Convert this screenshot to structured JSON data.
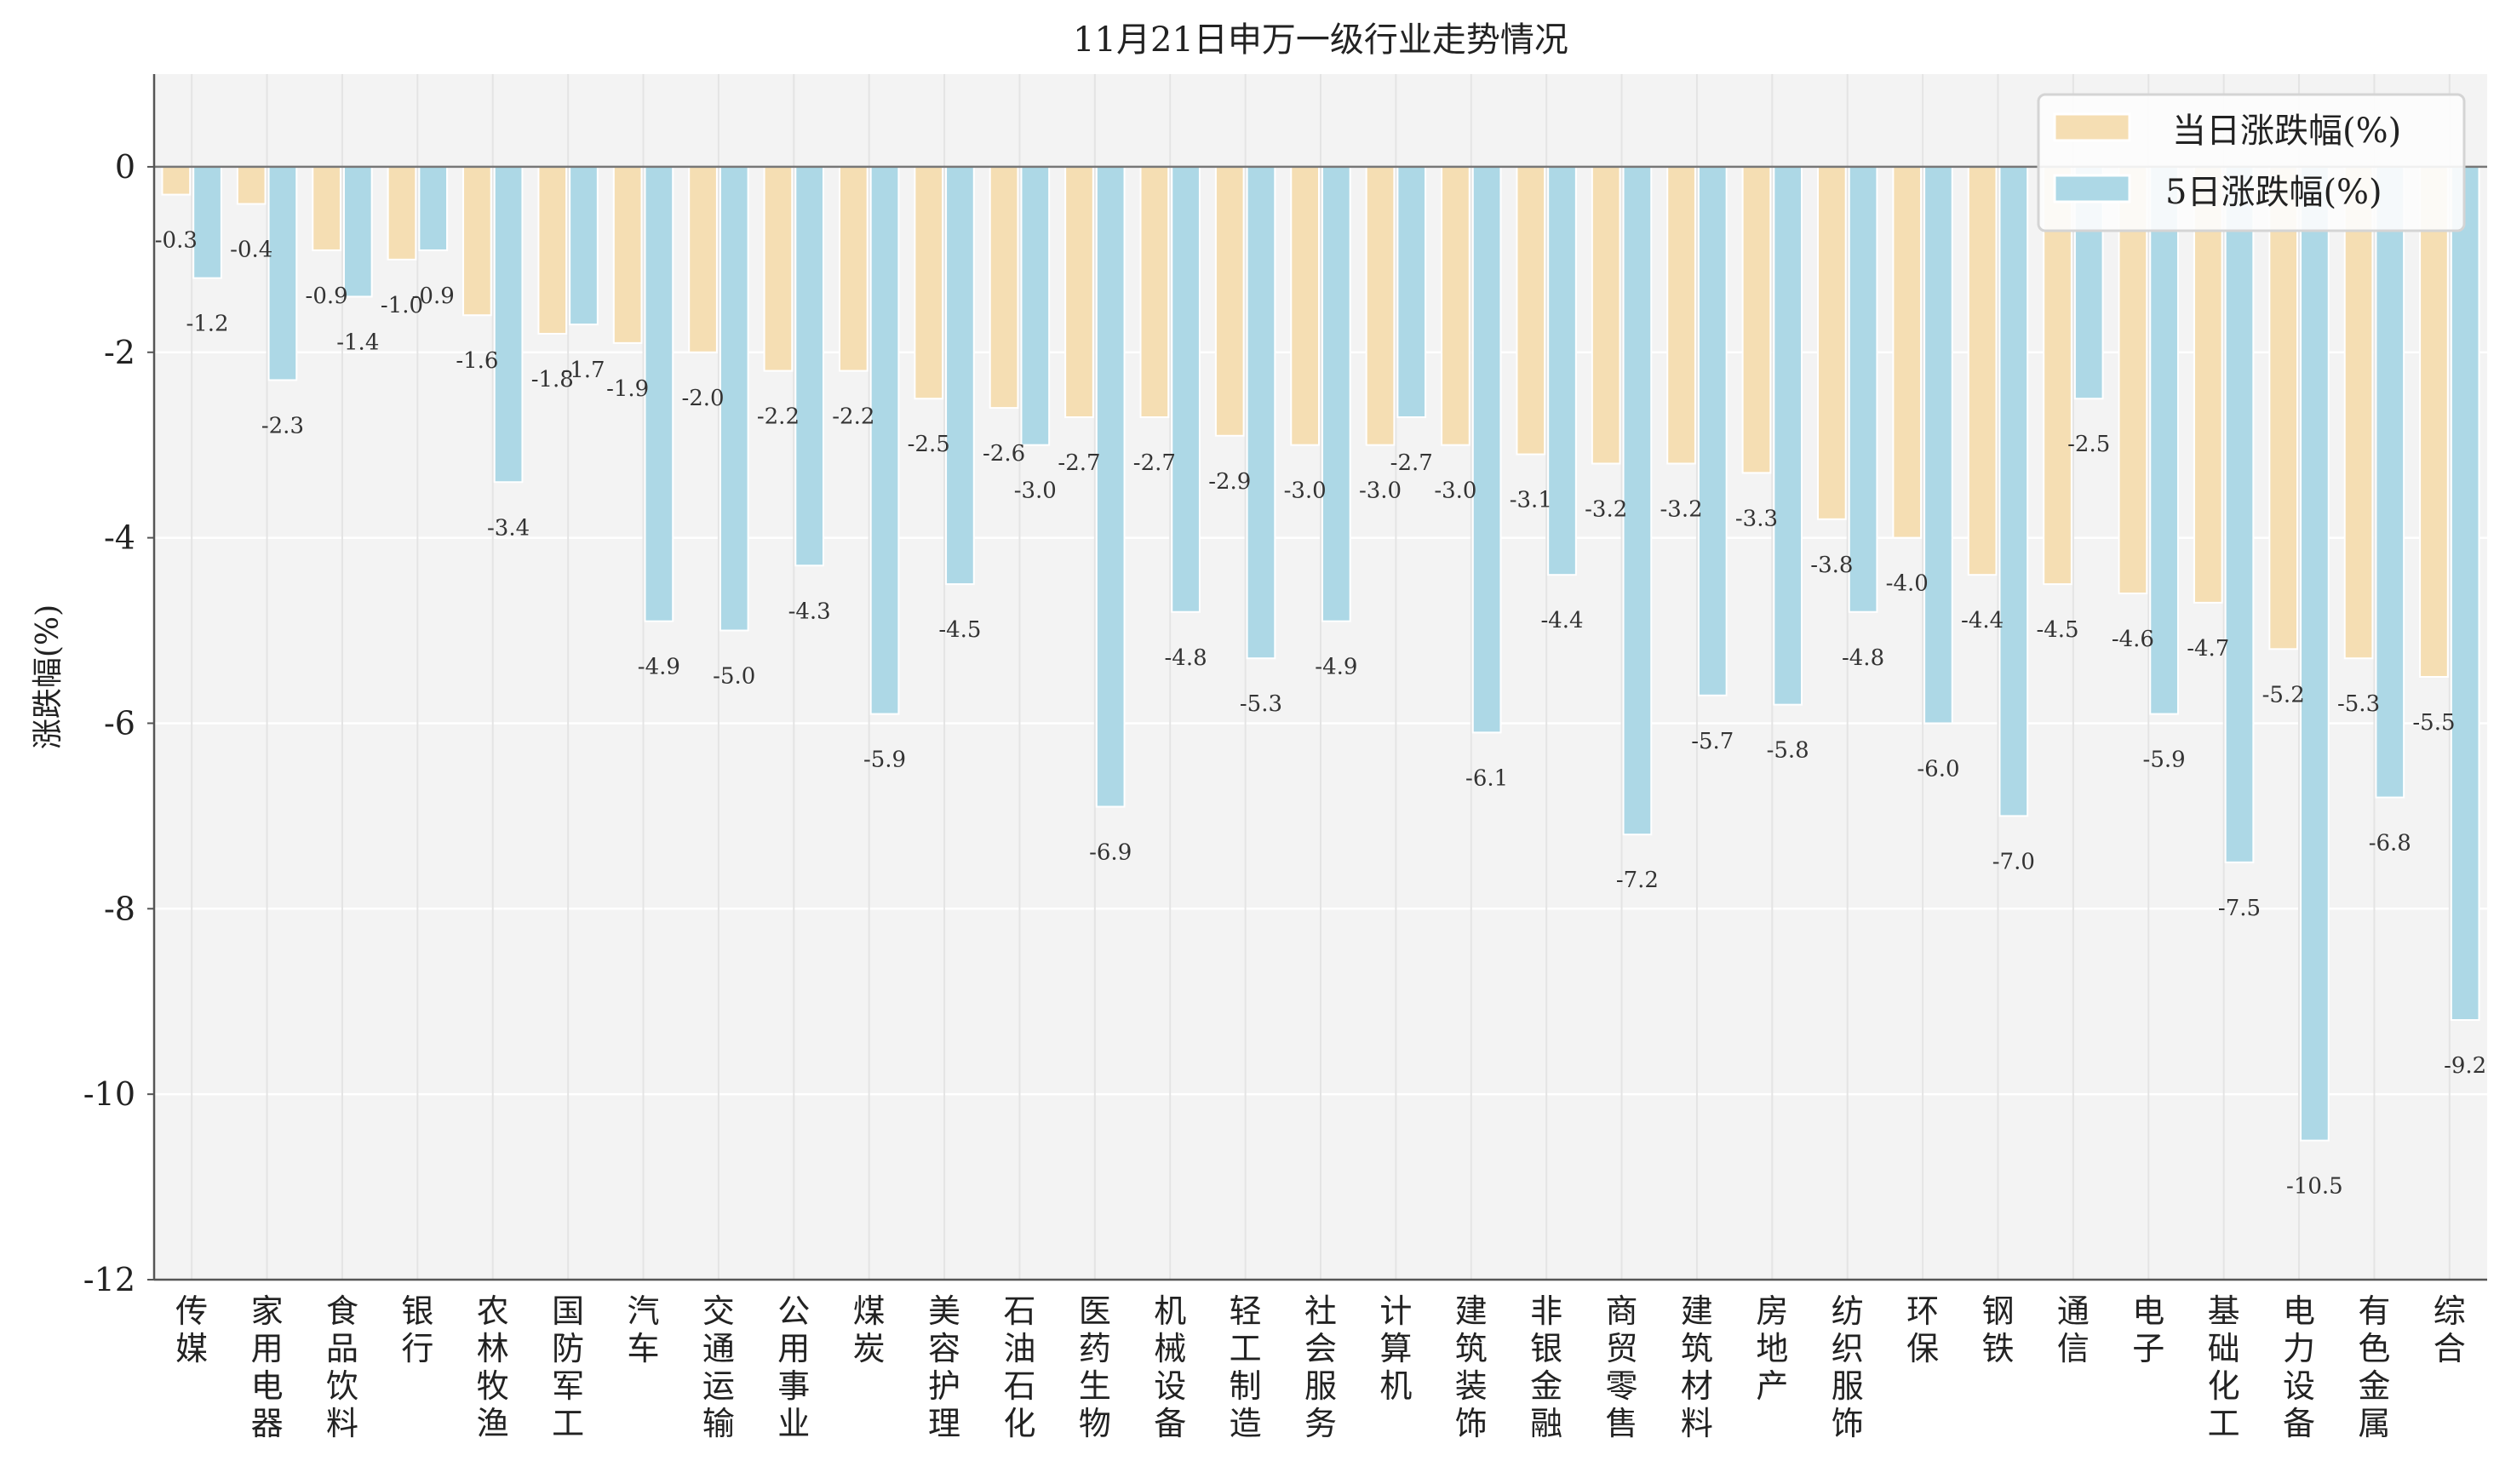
{
  "chart_data": {
    "type": "bar",
    "title": "11月21日申万一级行业走势情况",
    "xlabel": "",
    "ylabel": "涨跌幅(%)",
    "ylim": [
      -12,
      1
    ],
    "yticks": [
      0,
      -2,
      -4,
      -6,
      -8,
      -10,
      -12
    ],
    "grid": true,
    "legend_position": "top-right",
    "categories": [
      "传媒",
      "家用电器",
      "食品饮料",
      "银行",
      "农林牧渔",
      "国防军工",
      "汽车",
      "交通运输",
      "公用事业",
      "煤炭",
      "美容护理",
      "石油石化",
      "医药生物",
      "机械设备",
      "轻工制造",
      "社会服务",
      "计算机",
      "建筑装饰",
      "非银金融",
      "商贸零售",
      "建筑材料",
      "房地产",
      "纺织服饰",
      "环保",
      "钢铁",
      "通信",
      "电子",
      "基础化工",
      "电力设备",
      "有色金属",
      "综合"
    ],
    "series": [
      {
        "name": "当日涨跌幅(%)",
        "color": "#F5DEB3",
        "values": [
          -0.3,
          -0.4,
          -0.9,
          -1.0,
          -1.6,
          -1.8,
          -1.9,
          -2.0,
          -2.2,
          -2.2,
          -2.5,
          -2.6,
          -2.7,
          -2.7,
          -2.9,
          -3.0,
          -3.0,
          -3.0,
          -3.1,
          -3.2,
          -3.2,
          -3.3,
          -3.8,
          -4.0,
          -4.4,
          -4.5,
          -4.6,
          -4.7,
          -5.2,
          -5.3,
          -5.5
        ]
      },
      {
        "name": "5日涨跌幅(%)",
        "color": "#ADD8E6",
        "values": [
          -1.2,
          -2.3,
          -1.4,
          -0.9,
          -3.4,
          -1.7,
          -4.9,
          -5.0,
          -4.3,
          -5.9,
          -4.5,
          -3.0,
          -6.9,
          -4.8,
          -5.3,
          -4.9,
          -2.7,
          -6.1,
          -4.4,
          -7.2,
          -5.7,
          -5.8,
          -4.8,
          -6.0,
          -7.0,
          -2.5,
          -5.9,
          -7.5,
          -10.5,
          -6.8,
          -9.2
        ]
      }
    ]
  }
}
